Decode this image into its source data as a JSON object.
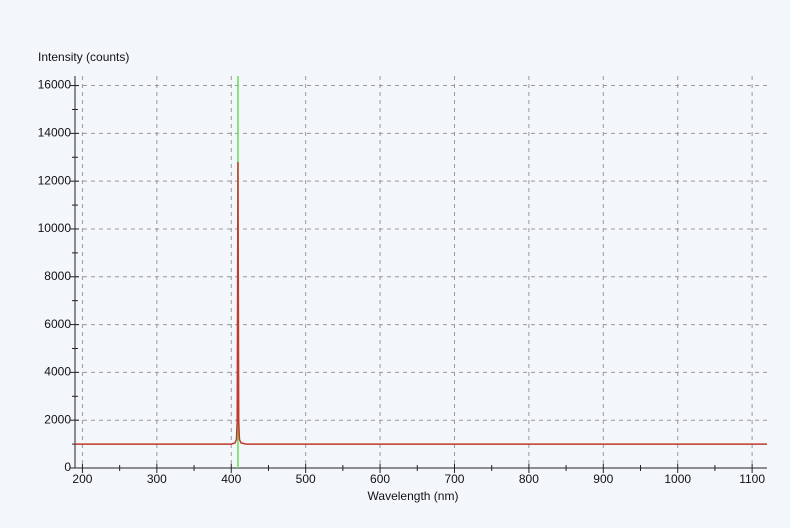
{
  "chart_data": {
    "type": "line",
    "y_label": "Intensity (counts)",
    "x_label": "Wavelength (nm)",
    "xlim": [
      190,
      1120
    ],
    "ylim": [
      0,
      16400
    ],
    "xticks": [
      200,
      300,
      400,
      500,
      600,
      700,
      800,
      900,
      1000,
      1100
    ],
    "x_minor_ticks": [
      250,
      350,
      450,
      550,
      650,
      750,
      850,
      950,
      1050
    ],
    "yticks": [
      0,
      2000,
      4000,
      6000,
      8000,
      10000,
      12000,
      14000,
      16000
    ],
    "y_minor_ticks": [
      1000,
      3000,
      5000,
      7000,
      9000,
      11000,
      13000,
      15000
    ],
    "grid": true,
    "marker_x": 409,
    "marker_color": "#66dd55",
    "series": [
      {
        "color": "#c0392b",
        "x": [
          190,
          400,
          405,
          407,
          408,
          409,
          410,
          411,
          413,
          420,
          1120
        ],
        "values": [
          1000,
          1000,
          1050,
          1200,
          2000,
          12800,
          2000,
          1200,
          1050,
          1000,
          1000
        ]
      }
    ]
  }
}
